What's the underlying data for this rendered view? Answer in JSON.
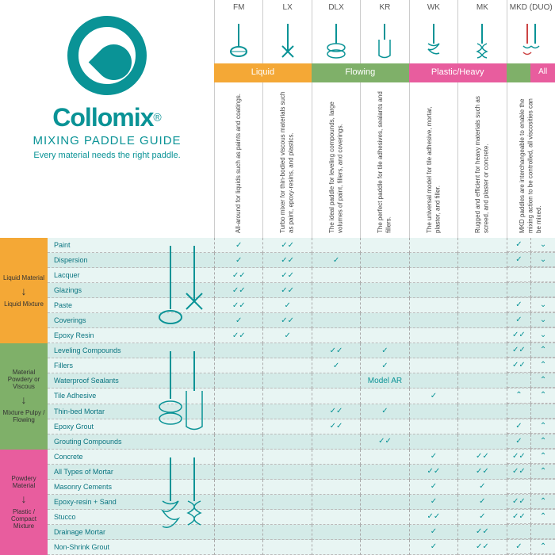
{
  "brand": {
    "name": "Collomix",
    "subtitle": "MIXING PADDLE GUIDE",
    "tagline": "Every material needs the right paddle."
  },
  "colors": {
    "teal": "#0a9396",
    "orange": "#f4a836",
    "green": "#7fb069",
    "pink": "#e85d9e",
    "stripeA": "#e8f5f3",
    "stripeB": "#d4ebe8"
  },
  "paddles": [
    {
      "code": "FM",
      "desc": "All-around for liquids such as paints and coatings."
    },
    {
      "code": "LX",
      "desc": "Turbo mixer for thin-bodied viscous materials such as paint, epoxy-resins, and plastics."
    },
    {
      "code": "DLX",
      "desc": "The ideal paddle for leveling compounds, large volumes of paint, fillers, and coverings."
    },
    {
      "code": "KR",
      "desc": "The perfect paddle for tile adhesives, sealants and fillers."
    },
    {
      "code": "WK",
      "desc": "The universal model for tile adhesive, mortar, plaster, and filler."
    },
    {
      "code": "MK",
      "desc": "Rugged and efficient for heavy materials such as screed, and plaster or concrete."
    },
    {
      "code": "MKD (DUO)",
      "desc": "MKD paddles are interchangeable to enable the mixing action to be controlled, all viscosities can be mixed."
    }
  ],
  "categories": {
    "liquid": "Liquid",
    "flowing": "Flowing",
    "plastic": "Plastic/Heavy",
    "all": "All"
  },
  "sections": [
    {
      "color": "orange",
      "topLabel": "Liquid Material",
      "bottomLabel": "Liquid Mixture",
      "rows": [
        {
          "name": "Paint",
          "checks": [
            "✓",
            "✓✓",
            "",
            "",
            "",
            "",
            "✓",
            "⌄"
          ]
        },
        {
          "name": "Dispersion",
          "checks": [
            "✓",
            "✓✓",
            "✓",
            "",
            "",
            "",
            "✓",
            "⌄"
          ]
        },
        {
          "name": "Lacquer",
          "checks": [
            "✓✓",
            "✓✓",
            "",
            "",
            "",
            "",
            "",
            ""
          ]
        },
        {
          "name": "Glazings",
          "checks": [
            "✓✓",
            "✓✓",
            "",
            "",
            "",
            "",
            "",
            ""
          ]
        },
        {
          "name": "Paste",
          "checks": [
            "✓✓",
            "✓",
            "",
            "",
            "",
            "",
            "✓",
            "⌄"
          ]
        },
        {
          "name": "Coverings",
          "checks": [
            "✓",
            "✓✓",
            "",
            "",
            "",
            "",
            "✓",
            "⌄"
          ]
        },
        {
          "name": "Epoxy Resin",
          "checks": [
            "✓✓",
            "✓",
            "",
            "",
            "",
            "",
            "✓✓",
            "⌄"
          ]
        }
      ]
    },
    {
      "color": "green",
      "topLabel": "Material Powdery or Viscous",
      "bottomLabel": "Mixture Pulpy / Flowing",
      "rows": [
        {
          "name": "Leveling Compounds",
          "checks": [
            "",
            "",
            "✓✓",
            "✓",
            "",
            "",
            "✓✓",
            "⌃"
          ]
        },
        {
          "name": "Fillers",
          "checks": [
            "",
            "",
            "✓",
            "✓",
            "",
            "",
            "✓✓",
            "⌃"
          ]
        },
        {
          "name": "Waterproof Sealants",
          "checks": [
            "",
            "",
            "",
            "Model AR",
            "",
            "",
            "",
            "⌃"
          ]
        },
        {
          "name": "Tile Adhesive",
          "checks": [
            "",
            "",
            "",
            "",
            "✓",
            "",
            "⌃",
            "⌃"
          ]
        },
        {
          "name": "Thin-bed Mortar",
          "checks": [
            "",
            "",
            "✓✓",
            "✓",
            "",
            "",
            "",
            ""
          ]
        },
        {
          "name": "Epoxy Grout",
          "checks": [
            "",
            "",
            "✓✓",
            "",
            "",
            "",
            "✓",
            "⌃"
          ]
        },
        {
          "name": "Grouting Compounds",
          "checks": [
            "",
            "",
            "",
            "✓✓",
            "",
            "",
            "✓",
            "⌃"
          ]
        }
      ]
    },
    {
      "color": "pink",
      "topLabel": "Powdery Material",
      "bottomLabel": "Plastic / Compact Mixture",
      "rows": [
        {
          "name": "Concrete",
          "checks": [
            "",
            "",
            "",
            "",
            "✓",
            "✓✓",
            "✓✓",
            "⌃"
          ]
        },
        {
          "name": "All Types of Mortar",
          "checks": [
            "",
            "",
            "",
            "",
            "✓✓",
            "✓✓",
            "✓✓",
            "⌃"
          ]
        },
        {
          "name": "Masonry Cements",
          "checks": [
            "",
            "",
            "",
            "",
            "✓",
            "✓",
            "",
            ""
          ]
        },
        {
          "name": "Epoxy-resin + Sand",
          "checks": [
            "",
            "",
            "",
            "",
            "✓",
            "✓",
            "✓✓",
            "⌃"
          ]
        },
        {
          "name": "Stucco",
          "checks": [
            "",
            "",
            "",
            "",
            "✓✓",
            "✓",
            "✓✓",
            "⌃"
          ]
        },
        {
          "name": "Drainage Mortar",
          "checks": [
            "",
            "",
            "",
            "",
            "✓",
            "✓✓",
            "",
            ""
          ]
        },
        {
          "name": "Non-Shrink Grout",
          "checks": [
            "",
            "",
            "",
            "",
            "✓",
            "✓✓",
            "✓",
            "⌃"
          ]
        }
      ]
    }
  ]
}
